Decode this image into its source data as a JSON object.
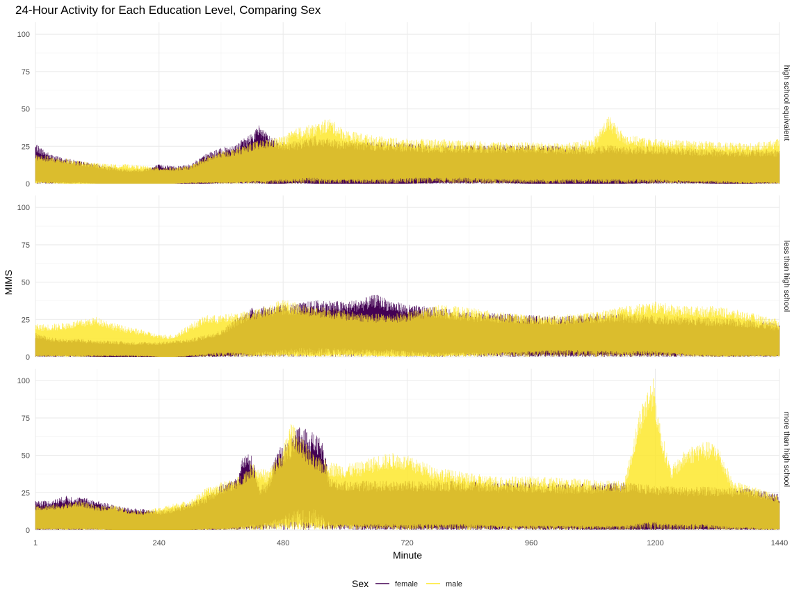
{
  "chart_data": {
    "type": "line",
    "title": "24-Hour Activity for Each Education Level, Comparing Sex",
    "xlabel": "Minute",
    "ylabel": "MIMS",
    "xlim": [
      1,
      1440
    ],
    "ylim": [
      0,
      108
    ],
    "x_ticks": [
      1,
      240,
      480,
      720,
      960,
      1200,
      1440
    ],
    "y_ticks": [
      0,
      25,
      50,
      75,
      100
    ],
    "grid": true,
    "legend": {
      "title": "Sex",
      "position": "bottom",
      "entries": [
        "female",
        "male"
      ]
    },
    "colors": {
      "female": "#440154",
      "male": "#FDE725"
    },
    "panels": [
      {
        "label": "high school equivalent",
        "series": [
          {
            "name": "female",
            "x": [
              1,
              30,
              60,
              90,
              120,
              150,
              180,
              210,
              240,
              270,
              300,
              330,
              360,
              390,
              420,
              435,
              450,
              480,
              510,
              540,
              570,
              600,
              660,
              720,
              780,
              840,
              900,
              960,
              1020,
              1080,
              1110,
              1140,
              1200,
              1260,
              1320,
              1380,
              1440
            ],
            "high": [
              27,
              20,
              17,
              15,
              13,
              11,
              10,
              10,
              13,
              12,
              13,
              20,
              24,
              27,
              34,
              40,
              33,
              28,
              29,
              32,
              30,
              29,
              28,
              27,
              26,
              26,
              26,
              26,
              25,
              25,
              26,
              25,
              25,
              24,
              23,
              23,
              23
            ],
            "low": [
              2,
              1,
              1,
              1,
              0,
              0,
              0,
              0,
              0,
              0,
              0,
              0,
              1,
              1,
              1,
              1,
              0,
              0,
              1,
              0,
              0,
              0,
              0,
              0,
              1,
              1,
              1,
              0,
              0,
              0,
              0,
              0,
              1,
              1,
              0,
              0,
              1
            ]
          },
          {
            "name": "male",
            "x": [
              1,
              30,
              60,
              90,
              120,
              150,
              180,
              210,
              240,
              270,
              300,
              330,
              360,
              390,
              420,
              450,
              480,
              510,
              540,
              570,
              600,
              660,
              720,
              780,
              840,
              900,
              960,
              1020,
              1080,
              1110,
              1140,
              1200,
              1260,
              1320,
              1380,
              1440
            ],
            "high": [
              20,
              18,
              17,
              15,
              14,
              13,
              13,
              12,
              11,
              11,
              12,
              18,
              22,
              24,
              28,
              30,
              32,
              38,
              40,
              44,
              36,
              32,
              30,
              30,
              29,
              28,
              28,
              27,
              30,
              46,
              33,
              30,
              29,
              28,
              27,
              30
            ],
            "low": [
              1,
              1,
              0,
              0,
              0,
              0,
              0,
              0,
              0,
              0,
              1,
              1,
              1,
              1,
              2,
              2,
              3,
              4,
              4,
              3,
              3,
              3,
              4,
              4,
              4,
              3,
              3,
              3,
              3,
              3,
              3,
              3,
              2,
              2,
              1,
              1
            ]
          }
        ]
      },
      {
        "label": "less than high school",
        "series": [
          {
            "name": "female",
            "x": [
              1,
              30,
              60,
              90,
              120,
              150,
              180,
              210,
              240,
              270,
              300,
              330,
              360,
              390,
              420,
              480,
              510,
              540,
              570,
              600,
              630,
              660,
              690,
              720,
              780,
              840,
              900,
              960,
              1020,
              1080,
              1140,
              1200,
              1260,
              1320,
              1380,
              1440
            ],
            "high": [
              16,
              13,
              12,
              12,
              11,
              11,
              10,
              10,
              10,
              11,
              12,
              15,
              18,
              26,
              33,
              35,
              36,
              38,
              38,
              37,
              39,
              42,
              38,
              35,
              33,
              30,
              29,
              28,
              27,
              29,
              29,
              28,
              27,
              26,
              25,
              22
            ],
            "low": [
              1,
              1,
              1,
              1,
              0,
              0,
              0,
              0,
              0,
              0,
              0,
              1,
              1,
              2,
              3,
              5,
              6,
              6,
              6,
              6,
              5,
              5,
              5,
              4,
              3,
              3,
              3,
              2,
              2,
              2,
              2,
              2,
              2,
              1,
              1,
              1
            ]
          },
          {
            "name": "male",
            "x": [
              1,
              30,
              60,
              90,
              120,
              150,
              180,
              210,
              240,
              270,
              300,
              330,
              360,
              390,
              420,
              480,
              510,
              540,
              570,
              600,
              630,
              660,
              690,
              720,
              780,
              840,
              900,
              960,
              1020,
              1080,
              1140,
              1200,
              1260,
              1320,
              1380,
              1440
            ],
            "high": [
              22,
              22,
              23,
              25,
              27,
              23,
              20,
              18,
              15,
              15,
              22,
              28,
              28,
              30,
              31,
              39,
              36,
              34,
              33,
              31,
              30,
              29,
              29,
              30,
              35,
              33,
              30,
              28,
              28,
              30,
              34,
              37,
              34,
              34,
              30,
              25
            ],
            "low": [
              1,
              1,
              1,
              1,
              1,
              1,
              1,
              1,
              0,
              0,
              1,
              2,
              3,
              3,
              2,
              2,
              2,
              1,
              2,
              2,
              2,
              1,
              1,
              1,
              1,
              2,
              3,
              4,
              5,
              4,
              4,
              4,
              2,
              1,
              1,
              1
            ]
          }
        ]
      },
      {
        "label": "more than high school",
        "series": [
          {
            "name": "female",
            "x": [
              1,
              30,
              60,
              90,
              120,
              150,
              180,
              210,
              240,
              270,
              300,
              330,
              360,
              390,
              405,
              420,
              435,
              450,
              470,
              480,
              495,
              510,
              540,
              555,
              570,
              600,
              660,
              720,
              780,
              840,
              900,
              960,
              1020,
              1080,
              1140,
              1200,
              1260,
              1320,
              1380,
              1440
            ],
            "high": [
              20,
              20,
              23,
              22,
              20,
              17,
              15,
              14,
              13,
              15,
              18,
              23,
              30,
              35,
              52,
              50,
              30,
              32,
              55,
              57,
              60,
              70,
              65,
              60,
              35,
              33,
              33,
              33,
              33,
              33,
              32,
              32,
              31,
              31,
              32,
              30,
              29,
              29,
              28,
              24
            ],
            "low": [
              1,
              1,
              1,
              1,
              1,
              0,
              0,
              0,
              0,
              0,
              0,
              1,
              1,
              2,
              3,
              4,
              4,
              5,
              8,
              10,
              12,
              14,
              14,
              12,
              5,
              4,
              3,
              2,
              2,
              2,
              2,
              2,
              2,
              1,
              1,
              1,
              1,
              1,
              1,
              1
            ]
          },
          {
            "name": "male",
            "x": [
              1,
              30,
              60,
              90,
              120,
              150,
              180,
              210,
              240,
              270,
              300,
              330,
              360,
              390,
              420,
              450,
              480,
              495,
              510,
              540,
              570,
              600,
              630,
              660,
              690,
              720,
              780,
              840,
              900,
              960,
              1020,
              1080,
              1140,
              1160,
              1170,
              1185,
              1195,
              1210,
              1230,
              1260,
              1290,
              1320,
              1350,
              1380,
              1410,
              1440
            ],
            "high": [
              17,
              17,
              18,
              20,
              16,
              17,
              14,
              13,
              15,
              18,
              20,
              28,
              32,
              35,
              45,
              40,
              55,
              73,
              65,
              50,
              46,
              44,
              46,
              50,
              52,
              50,
              42,
              38,
              36,
              36,
              35,
              34,
              33,
              65,
              82,
              95,
              104,
              70,
              42,
              55,
              60,
              58,
              33,
              30,
              27,
              23
            ],
            "low": [
              1,
              1,
              1,
              1,
              1,
              0,
              0,
              0,
              0,
              0,
              0,
              1,
              1,
              2,
              3,
              4,
              5,
              6,
              6,
              5,
              4,
              4,
              4,
              4,
              4,
              4,
              4,
              4,
              3,
              3,
              3,
              3,
              3,
              4,
              5,
              6,
              6,
              5,
              4,
              4,
              4,
              3,
              2,
              2,
              1,
              1
            ]
          }
        ]
      }
    ]
  }
}
